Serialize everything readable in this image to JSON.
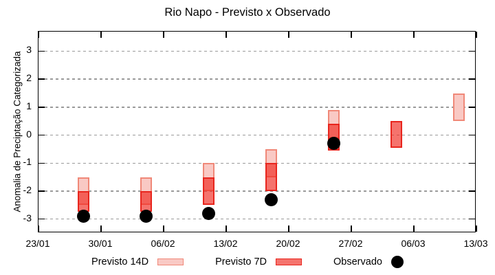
{
  "chart_data": {
    "type": "range-bar",
    "title": "Rio Napo - Previsto x Observado",
    "ylabel": "Anomalia de Preciptação Categorizada",
    "xlabel": "",
    "ylim": [
      -3.5,
      3.7
    ],
    "xlim_days": [
      0,
      49
    ],
    "grid": "horizontal-dashed-gray",
    "legend_position": "bottom-center",
    "y_ticks": [
      3,
      2,
      1,
      0,
      -1,
      -2,
      -3
    ],
    "x_ticks": [
      {
        "label": "23/01",
        "day": 0
      },
      {
        "label": "30/01",
        "day": 7
      },
      {
        "label": "06/02",
        "day": 14
      },
      {
        "label": "13/02",
        "day": 21
      },
      {
        "label": "20/02",
        "day": 28
      },
      {
        "label": "27/02",
        "day": 35
      },
      {
        "label": "06/03",
        "day": 42
      },
      {
        "label": "13/03",
        "day": 49
      }
    ],
    "series": [
      {
        "name": "Previsto 14D",
        "type": "range",
        "fill": "#f9c9c4",
        "legend_fill": "#f9c9c4",
        "border": "#f08878",
        "points": [
          {
            "date": "28/01",
            "day": 5,
            "low": -2.5,
            "high": -1.5
          },
          {
            "date": "04/02",
            "day": 12,
            "low": -2.5,
            "high": -1.5
          },
          {
            "date": "11/02",
            "day": 19,
            "low": -2.0,
            "high": -1.0
          },
          {
            "date": "18/02",
            "day": 26,
            "low": -1.5,
            "high": -0.5
          },
          {
            "date": "25/02",
            "day": 33,
            "low": -0.1,
            "high": 0.9
          },
          {
            "date": "11/03",
            "day": 47,
            "low": 0.5,
            "high": 1.5
          }
        ]
      },
      {
        "name": "Previsto 7D",
        "type": "range",
        "fill": "rgba(240,40,30,0.65)",
        "legend_fill": "#f5736d",
        "border": "#e8251d",
        "points": [
          {
            "date": "28/01",
            "day": 5,
            "low": -2.75,
            "high": -2.0
          },
          {
            "date": "04/02",
            "day": 12,
            "low": -2.75,
            "high": -2.0
          },
          {
            "date": "11/02",
            "day": 19,
            "low": -2.5,
            "high": -1.5
          },
          {
            "date": "18/02",
            "day": 26,
            "low": -2.0,
            "high": -1.0
          },
          {
            "date": "25/02",
            "day": 33,
            "low": -0.55,
            "high": 0.4
          },
          {
            "date": "04/03",
            "day": 40,
            "low": -0.45,
            "high": 0.5
          }
        ]
      },
      {
        "name": "Observado",
        "type": "scatter",
        "color": "#000000",
        "points": [
          {
            "date": "28/01",
            "day": 5,
            "value": -2.9
          },
          {
            "date": "04/02",
            "day": 12,
            "value": -2.9
          },
          {
            "date": "11/02",
            "day": 19,
            "value": -2.8
          },
          {
            "date": "18/02",
            "day": 26,
            "value": -2.3
          },
          {
            "date": "25/02",
            "day": 33,
            "value": -0.3
          }
        ]
      }
    ],
    "colors": {
      "grid": "#9a9a9a",
      "axis": "#000000",
      "background": "#ffffff",
      "observed": "#000000"
    }
  }
}
